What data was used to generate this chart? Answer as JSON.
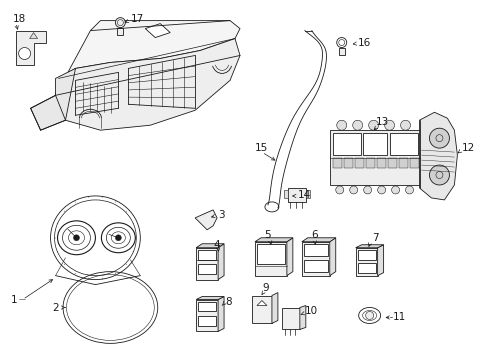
{
  "background_color": "#ffffff",
  "line_color": "#1a1a1a",
  "figsize": [
    4.89,
    3.6
  ],
  "dpi": 100,
  "font_size": 7.5,
  "lw": 0.6
}
